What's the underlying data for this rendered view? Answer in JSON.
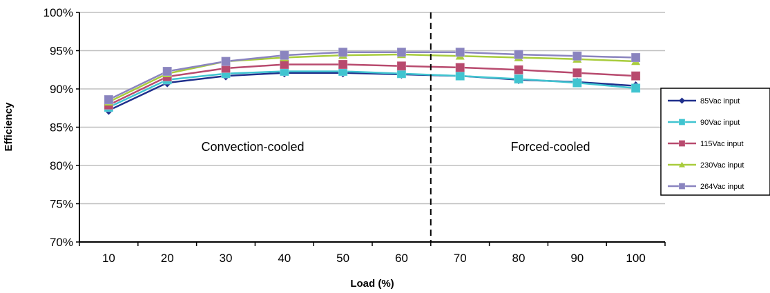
{
  "chart_data": {
    "type": "line",
    "title": "",
    "xlabel": "Load (%)",
    "ylabel": "Efficiency",
    "categories": [
      "10",
      "20",
      "30",
      "40",
      "50",
      "60",
      "70",
      "80",
      "90",
      "100"
    ],
    "ylim": [
      70,
      100
    ],
    "yticks": [
      70,
      75,
      80,
      85,
      90,
      95,
      100
    ],
    "ytick_labels": [
      "70%",
      "75%",
      "80%",
      "85%",
      "90%",
      "95%",
      "100%"
    ],
    "grid": "horizontal",
    "legend_position": "right",
    "series": [
      {
        "name": "85Vac input",
        "color": "#1f2f8c",
        "marker": "diamond",
        "values": [
          87.2,
          90.8,
          91.7,
          92.1,
          92.1,
          91.9,
          91.7,
          91.2,
          90.9,
          90.4
        ]
      },
      {
        "name": "90Vac input",
        "color": "#40c4d0",
        "marker": "square",
        "values": [
          87.6,
          91.2,
          92.0,
          92.3,
          92.3,
          92.0,
          91.7,
          91.3,
          90.8,
          90.1
        ]
      },
      {
        "name": "115Vac input",
        "color": "#b84a6e",
        "marker": "square",
        "values": [
          87.9,
          91.6,
          92.7,
          93.2,
          93.2,
          93.0,
          92.8,
          92.5,
          92.1,
          91.7
        ]
      },
      {
        "name": "230Vac input",
        "color": "#a8cc3c",
        "marker": "triangle",
        "values": [
          88.3,
          92.0,
          93.6,
          94.1,
          94.4,
          94.5,
          94.3,
          94.1,
          93.9,
          93.6
        ]
      },
      {
        "name": "264Vac input",
        "color": "#8a84bf",
        "marker": "square",
        "values": [
          88.6,
          92.3,
          93.6,
          94.4,
          94.8,
          94.8,
          94.8,
          94.5,
          94.3,
          94.1
        ]
      }
    ],
    "divider_between": [
      "60",
      "70"
    ],
    "annotations": [
      "Convection-cooled",
      "Forced-cooled"
    ]
  }
}
